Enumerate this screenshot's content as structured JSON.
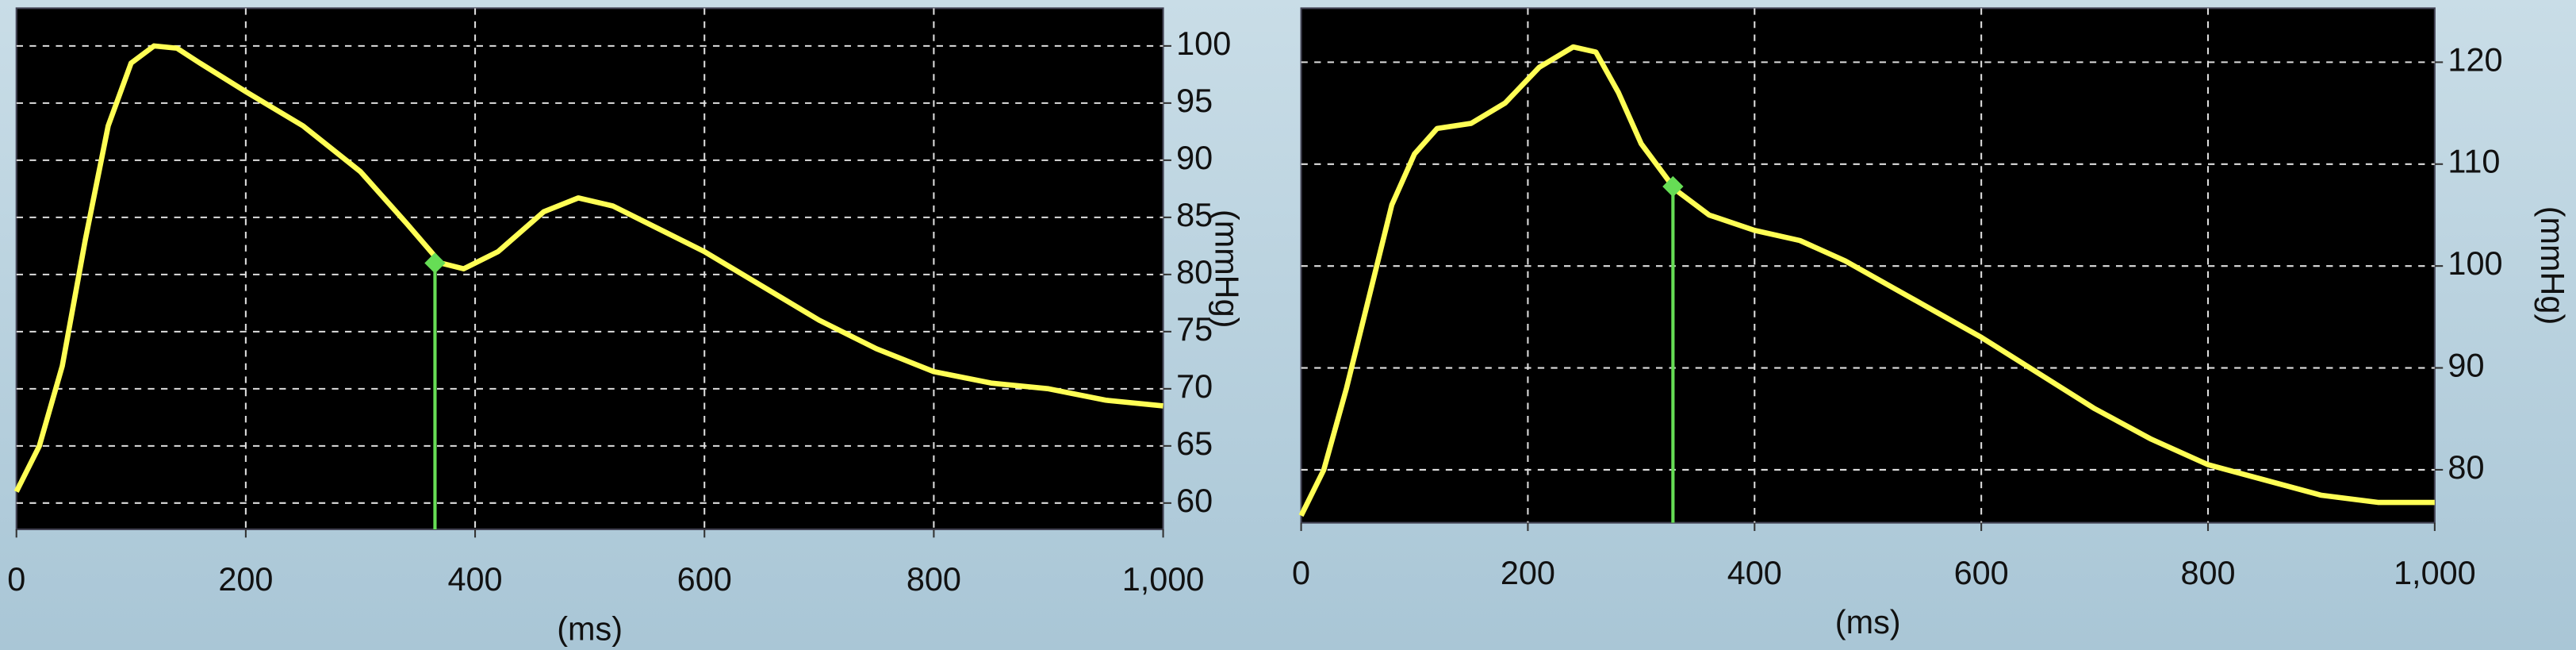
{
  "chart_data": [
    {
      "type": "line",
      "xlabel": "(ms)",
      "ylabel": "(mmHg)",
      "color": "#ffff55",
      "grid": true,
      "x": [
        0,
        20,
        40,
        60,
        80,
        100,
        120,
        140,
        160,
        200,
        250,
        300,
        340,
        370,
        390,
        420,
        460,
        490,
        520,
        560,
        600,
        650,
        700,
        750,
        800,
        850,
        900,
        950,
        1000
      ],
      "values": [
        61,
        65,
        72,
        83,
        93,
        98.5,
        100,
        99.8,
        98.5,
        96,
        93,
        89,
        84.5,
        81,
        80.5,
        82,
        85.5,
        86.7,
        86,
        84,
        82,
        79,
        76,
        73.5,
        71.5,
        70.5,
        70,
        69,
        68.5
      ],
      "marker": {
        "x": 365,
        "y": 81,
        "color": "#66dd55"
      },
      "xlim": [
        0,
        1000
      ],
      "ylim": [
        57.7,
        103.3
      ],
      "xticks": [
        0,
        200,
        400,
        600,
        800,
        {
          "value": 1000,
          "label": "1,000"
        }
      ],
      "yticks": [
        60,
        65,
        70,
        75,
        80,
        85,
        90,
        95,
        100
      ]
    },
    {
      "type": "line",
      "xlabel": "(ms)",
      "ylabel": "(mmHg)",
      "color": "#ffff55",
      "grid": true,
      "x": [
        0,
        20,
        40,
        60,
        80,
        100,
        120,
        150,
        180,
        210,
        240,
        260,
        280,
        300,
        330,
        360,
        400,
        440,
        480,
        520,
        560,
        600,
        650,
        700,
        750,
        800,
        850,
        900,
        950,
        1000
      ],
      "values": [
        75.5,
        80,
        88,
        97,
        106,
        111,
        113.5,
        114,
        116,
        119.5,
        121.5,
        121,
        117,
        112,
        107.5,
        105,
        103.5,
        102.5,
        100.5,
        98,
        95.5,
        93,
        89.5,
        86,
        83,
        80.5,
        79,
        77.5,
        76.8,
        76.8
      ],
      "marker": {
        "x": 328,
        "y": 107.8,
        "color": "#66dd55"
      },
      "xlim": [
        0,
        1000
      ],
      "ylim": [
        74.8,
        125.3
      ],
      "xticks": [
        0,
        200,
        400,
        600,
        800,
        {
          "value": 1000,
          "label": "1,000"
        }
      ],
      "yticks": [
        80,
        90,
        100,
        110,
        120
      ]
    }
  ]
}
